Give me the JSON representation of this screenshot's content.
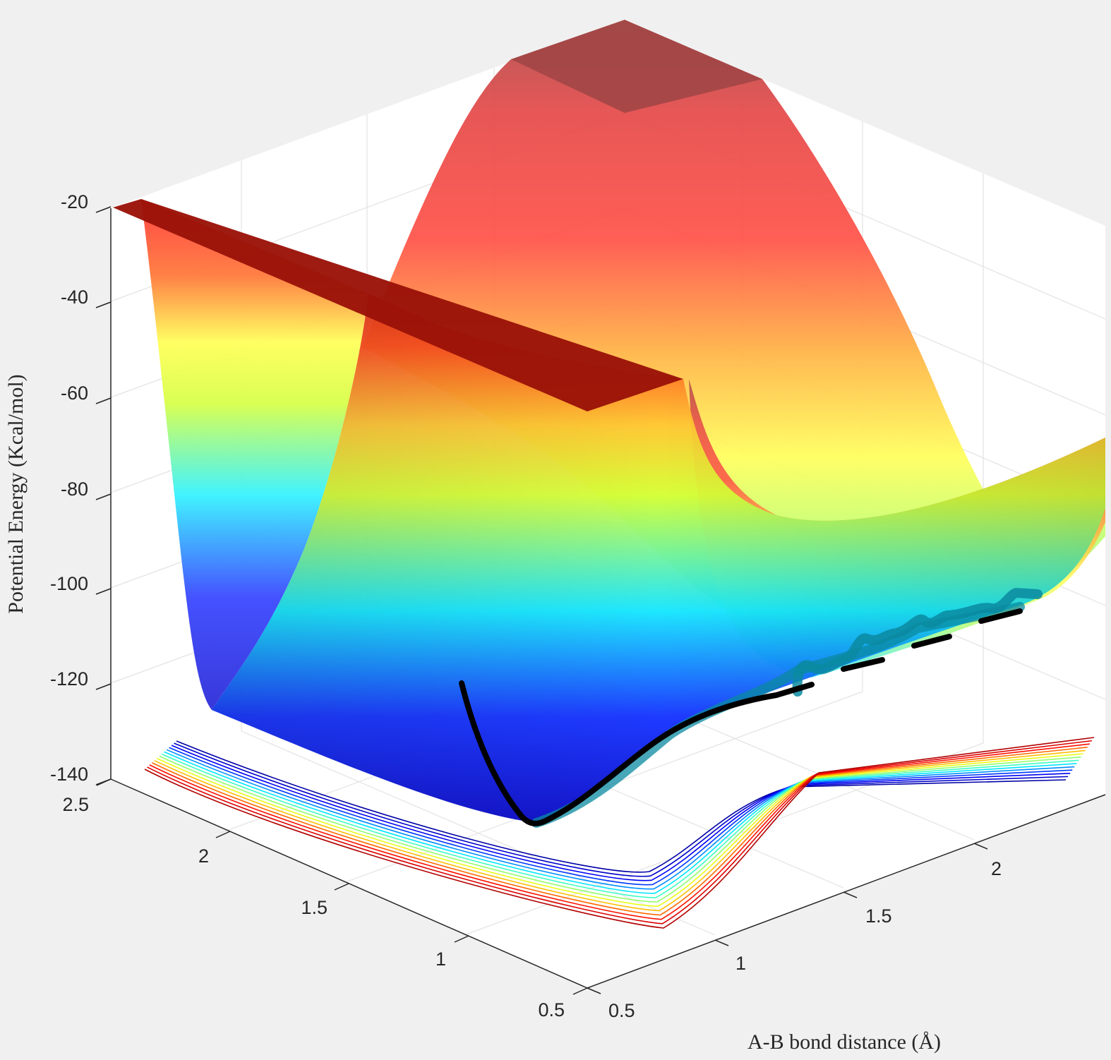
{
  "chart_data": {
    "type": "surface",
    "title": "",
    "xlabel": "A-B bond distance (Å)",
    "ylabel": "",
    "zlabel": "Potential Energy (Kcal/mol)",
    "x_ticks": [
      "0.5",
      "1",
      "1.5",
      "2"
    ],
    "y_ticks": [
      "0.5",
      "1",
      "1.5",
      "2",
      "2.5"
    ],
    "z_ticks": [
      "-20",
      "-40",
      "-60",
      "-80",
      "-100",
      "-120",
      "-140"
    ],
    "xlim": [
      0.5,
      2.4
    ],
    "ylim": [
      0.5,
      2.5
    ],
    "zlim": [
      -140,
      -20
    ],
    "grid": true,
    "colormap": "jet",
    "colormap_colors": [
      "#00008f",
      "#0000ff",
      "#00ffff",
      "#ffff00",
      "#ff0000",
      "#800000"
    ],
    "surface_zmin": -138,
    "surface_zmax": -20,
    "contour_levels": [
      -135,
      -130,
      -125,
      -120,
      -115,
      -110,
      -105,
      -100,
      -95,
      -90,
      -85,
      -80,
      -75,
      -70
    ],
    "trajectory": {
      "color": "#000000",
      "points": [
        {
          "x": 0.88,
          "y": 0.62,
          "z": -120
        },
        {
          "x": 0.82,
          "y": 0.66,
          "z": -129
        },
        {
          "x": 0.76,
          "y": 0.72,
          "z": -136
        },
        {
          "x": 0.74,
          "y": 0.76,
          "z": -138
        },
        {
          "x": 0.8,
          "y": 0.8,
          "z": -136
        },
        {
          "x": 0.95,
          "y": 0.82,
          "z": -130
        },
        {
          "x": 1.1,
          "y": 0.85,
          "z": -124
        },
        {
          "x": 1.3,
          "y": 0.86,
          "z": -121
        },
        {
          "x": 1.55,
          "y": 0.86,
          "z": -119
        },
        {
          "x": 1.8,
          "y": 0.86,
          "z": -117
        },
        {
          "x": 2.05,
          "y": 0.86,
          "z": -115
        },
        {
          "x": 2.3,
          "y": 0.86,
          "z": -113
        }
      ]
    }
  }
}
